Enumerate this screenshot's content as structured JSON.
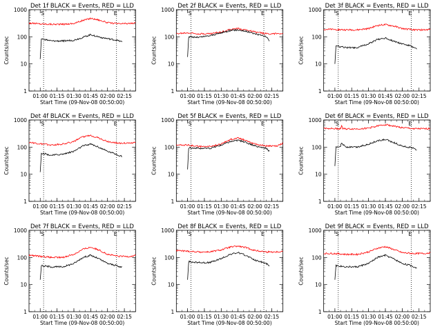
{
  "colors": {
    "events": "#000000",
    "lld": "#ff0000",
    "marker": "#000000",
    "background": "#ffffff"
  },
  "chart_data": [
    {
      "type": "line",
      "title": "Det 1f BLACK = Events, RED = LLD",
      "xlabel": "Start Time (09-Nov-08 00:50:00)",
      "ylabel": "Counts/sec",
      "yscale": "log",
      "ylim": [
        1,
        1000
      ],
      "xlim": [
        "00:50",
        "02:25"
      ],
      "x_ticks": [
        "01:00",
        "01:15",
        "01:30",
        "01:45",
        "02:00",
        "02:15"
      ],
      "y_ticks": [
        "1",
        "10",
        "100",
        "1000"
      ],
      "marker_times": [
        "01:03",
        "02:08"
      ],
      "marker_labels": [
        "S",
        "E"
      ],
      "grid": false,
      "series": [
        {
          "name": "Events",
          "color": "black",
          "time": [
            "01:00",
            "01:01",
            "01:10",
            "01:20",
            "01:30",
            "01:38",
            "01:45",
            "01:52",
            "02:00",
            "02:08",
            "02:10",
            "02:13"
          ],
          "values": [
            15,
            85,
            70,
            70,
            75,
            95,
            120,
            100,
            85,
            75,
            70,
            65
          ]
        },
        {
          "name": "LLD",
          "color": "red",
          "time": [
            "00:50",
            "01:00",
            "01:10",
            "01:20",
            "01:30",
            "01:38",
            "01:45",
            "01:52",
            "02:00",
            "02:10",
            "02:20",
            "02:25"
          ],
          "values": [
            320,
            300,
            290,
            290,
            310,
            400,
            480,
            420,
            330,
            300,
            310,
            320
          ]
        }
      ]
    },
    {
      "type": "line",
      "title": "Det 2f BLACK = Events, RED = LLD",
      "xlabel": "Start Time (09-Nov-08 00:50:00)",
      "ylabel": "Counts/sec",
      "yscale": "log",
      "ylim": [
        1,
        1000
      ],
      "xlim": [
        "00:50",
        "02:25"
      ],
      "x_ticks": [
        "01:00",
        "01:15",
        "01:30",
        "01:45",
        "02:00",
        "02:15"
      ],
      "y_ticks": [
        "1",
        "10",
        "100",
        "1000"
      ],
      "marker_times": [
        "01:03",
        "02:08"
      ],
      "marker_labels": [
        "S",
        "E"
      ],
      "grid": false,
      "series": [
        {
          "name": "Events",
          "color": "black",
          "time": [
            "01:00",
            "01:01",
            "01:10",
            "01:20",
            "01:30",
            "01:38",
            "01:45",
            "01:52",
            "02:00",
            "02:08",
            "02:10",
            "02:13"
          ],
          "values": [
            18,
            100,
            95,
            110,
            140,
            170,
            180,
            160,
            130,
            110,
            100,
            70
          ]
        },
        {
          "name": "LLD",
          "color": "red",
          "time": [
            "00:50",
            "01:00",
            "01:10",
            "01:20",
            "01:30",
            "01:38",
            "01:45",
            "01:52",
            "02:00",
            "02:10",
            "02:20",
            "02:25"
          ],
          "values": [
            130,
            140,
            130,
            130,
            150,
            185,
            200,
            180,
            150,
            130,
            130,
            135
          ]
        }
      ]
    },
    {
      "type": "line",
      "title": "Det 3f BLACK = Events, RED = LLD",
      "xlabel": "Start Time (09-Nov-08 00:50:00)",
      "ylabel": "Counts/sec",
      "yscale": "log",
      "ylim": [
        1,
        1000
      ],
      "xlim": [
        "00:50",
        "02:25"
      ],
      "x_ticks": [
        "01:00",
        "01:15",
        "01:30",
        "01:45",
        "02:00",
        "02:15"
      ],
      "y_ticks": [
        "1",
        "10",
        "100",
        "1000"
      ],
      "marker_times": [
        "01:03",
        "02:08"
      ],
      "marker_labels": [
        "S",
        "E"
      ],
      "grid": false,
      "series": [
        {
          "name": "Events",
          "color": "black",
          "time": [
            "01:00",
            "01:01",
            "01:10",
            "01:20",
            "01:30",
            "01:38",
            "01:45",
            "01:52",
            "02:00",
            "02:08",
            "02:10",
            "02:13"
          ],
          "values": [
            10,
            45,
            40,
            40,
            55,
            80,
            90,
            70,
            55,
            45,
            40,
            35
          ]
        },
        {
          "name": "LLD",
          "color": "red",
          "time": [
            "00:50",
            "01:00",
            "01:10",
            "01:20",
            "01:30",
            "01:38",
            "01:45",
            "01:52",
            "02:00",
            "02:10",
            "02:20",
            "02:25"
          ],
          "values": [
            190,
            185,
            180,
            180,
            200,
            260,
            280,
            250,
            200,
            180,
            180,
            185
          ]
        }
      ]
    },
    {
      "type": "line",
      "title": "Det 4f BLACK = Events, RED = LLD",
      "xlabel": "Start Time (09-Nov-08 00:50:00)",
      "ylabel": "Counts/sec",
      "yscale": "log",
      "ylim": [
        1,
        1000
      ],
      "xlim": [
        "00:50",
        "02:25"
      ],
      "x_ticks": [
        "01:00",
        "01:15",
        "01:30",
        "01:45",
        "02:00",
        "02:15"
      ],
      "y_ticks": [
        "1",
        "10",
        "100",
        "1000"
      ],
      "marker_times": [
        "01:03",
        "02:08"
      ],
      "marker_labels": [
        "S",
        "E"
      ],
      "grid": false,
      "series": [
        {
          "name": "Events",
          "color": "black",
          "time": [
            "01:00",
            "01:01",
            "01:10",
            "01:20",
            "01:30",
            "01:38",
            "01:45",
            "01:52",
            "02:00",
            "02:08",
            "02:10",
            "02:13"
          ],
          "values": [
            12,
            60,
            50,
            55,
            70,
            110,
            130,
            100,
            70,
            55,
            50,
            45
          ]
        },
        {
          "name": "LLD",
          "color": "red",
          "time": [
            "00:50",
            "01:00",
            "01:10",
            "01:20",
            "01:30",
            "01:38",
            "01:45",
            "01:52",
            "02:00",
            "02:10",
            "02:20",
            "02:25"
          ],
          "values": [
            150,
            130,
            120,
            130,
            160,
            240,
            270,
            220,
            160,
            140,
            140,
            150
          ]
        }
      ]
    },
    {
      "type": "line",
      "title": "Det 5f BLACK = Events, RED = LLD",
      "xlabel": "Start Time (09-Nov-08 00:50:00)",
      "ylabel": "Counts/sec",
      "yscale": "log",
      "ylim": [
        1,
        1000
      ],
      "xlim": [
        "00:50",
        "02:25"
      ],
      "x_ticks": [
        "01:00",
        "01:15",
        "01:30",
        "01:45",
        "02:00",
        "02:15"
      ],
      "y_ticks": [
        "1",
        "10",
        "100",
        "1000"
      ],
      "marker_times": [
        "01:03",
        "02:08"
      ],
      "marker_labels": [
        "S",
        "E"
      ],
      "grid": false,
      "series": [
        {
          "name": "Events",
          "color": "black",
          "time": [
            "01:00",
            "01:01",
            "01:10",
            "01:20",
            "01:30",
            "01:38",
            "01:45",
            "01:52",
            "02:00",
            "02:08",
            "02:10",
            "02:13"
          ],
          "values": [
            15,
            95,
            90,
            90,
            120,
            160,
            180,
            150,
            110,
            95,
            90,
            70
          ]
        },
        {
          "name": "LLD",
          "color": "red",
          "time": [
            "00:50",
            "01:00",
            "01:10",
            "01:20",
            "01:30",
            "01:38",
            "01:45",
            "01:52",
            "02:00",
            "02:10",
            "02:20",
            "02:25"
          ],
          "values": [
            120,
            120,
            105,
            105,
            130,
            190,
            220,
            180,
            130,
            110,
            110,
            140
          ]
        }
      ]
    },
    {
      "type": "line",
      "title": "Det 6f BLACK = Events, RED = LLD",
      "xlabel": "Start Time (09-Nov-08 00:50:00)",
      "ylabel": "Counts/sec",
      "yscale": "log",
      "ylim": [
        1,
        1000
      ],
      "xlim": [
        "00:50",
        "02:25"
      ],
      "x_ticks": [
        "01:00",
        "01:15",
        "01:30",
        "01:45",
        "02:00",
        "02:15"
      ],
      "y_ticks": [
        "1",
        "10",
        "100",
        "1000"
      ],
      "marker_times": [
        "01:03",
        "02:08"
      ],
      "marker_labels": [
        "S",
        "E"
      ],
      "grid": false,
      "series": [
        {
          "name": "Events",
          "color": "black",
          "time": [
            "01:00",
            "01:01",
            "01:05",
            "01:06",
            "01:10",
            "01:20",
            "01:30",
            "01:38",
            "01:45",
            "01:52",
            "02:00",
            "02:08",
            "02:10",
            "02:13"
          ],
          "values": [
            20,
            100,
            110,
            140,
            100,
            100,
            130,
            170,
            190,
            150,
            110,
            95,
            90,
            80
          ]
        },
        {
          "name": "LLD",
          "color": "red",
          "time": [
            "00:50",
            "01:00",
            "01:05",
            "01:06",
            "01:07",
            "01:20",
            "01:30",
            "01:38",
            "01:45",
            "01:52",
            "02:00",
            "02:10",
            "02:20",
            "02:25"
          ],
          "values": [
            500,
            480,
            480,
            620,
            470,
            470,
            500,
            600,
            680,
            600,
            520,
            480,
            470,
            480
          ]
        }
      ]
    },
    {
      "type": "line",
      "title": "Det 7f BLACK = Events, RED = LLD",
      "xlabel": "Start Time (09-Nov-08 00:50:00)",
      "ylabel": "Counts/sec",
      "yscale": "log",
      "ylim": [
        1,
        1000
      ],
      "xlim": [
        "00:50",
        "02:25"
      ],
      "x_ticks": [
        "01:00",
        "01:15",
        "01:30",
        "01:45",
        "02:00",
        "02:15"
      ],
      "y_ticks": [
        "1",
        "10",
        "100",
        "1000"
      ],
      "marker_times": [
        "01:03",
        "02:08"
      ],
      "marker_labels": [
        "S",
        "E"
      ],
      "grid": false,
      "series": [
        {
          "name": "Events",
          "color": "black",
          "time": [
            "01:00",
            "01:01",
            "01:10",
            "01:20",
            "01:30",
            "01:38",
            "01:45",
            "01:52",
            "02:00",
            "02:08",
            "02:10",
            "02:13"
          ],
          "values": [
            15,
            50,
            45,
            45,
            60,
            100,
            120,
            90,
            60,
            50,
            45,
            45
          ]
        },
        {
          "name": "LLD",
          "color": "red",
          "time": [
            "00:50",
            "01:00",
            "01:10",
            "01:20",
            "01:30",
            "01:38",
            "01:45",
            "01:52",
            "02:00",
            "02:10",
            "02:20",
            "02:25"
          ],
          "values": [
            120,
            110,
            100,
            100,
            130,
            200,
            240,
            190,
            130,
            110,
            110,
            120
          ]
        }
      ]
    },
    {
      "type": "line",
      "title": "Det 8f BLACK = Events, RED = LLD",
      "xlabel": "Start Time (09-Nov-08 00:50:00)",
      "ylabel": "Counts/sec",
      "yscale": "log",
      "ylim": [
        1,
        1000
      ],
      "xlim": [
        "00:50",
        "02:25"
      ],
      "x_ticks": [
        "01:00",
        "01:15",
        "01:30",
        "01:45",
        "02:00",
        "02:15"
      ],
      "y_ticks": [
        "1",
        "10",
        "100",
        "1000"
      ],
      "marker_times": [
        "01:03",
        "02:08"
      ],
      "marker_labels": [
        "S",
        "E"
      ],
      "grid": false,
      "series": [
        {
          "name": "Events",
          "color": "black",
          "time": [
            "01:00",
            "01:01",
            "01:10",
            "01:20",
            "01:30",
            "01:38",
            "01:45",
            "01:52",
            "02:00",
            "02:08",
            "02:10",
            "02:13"
          ],
          "values": [
            15,
            70,
            65,
            65,
            90,
            130,
            150,
            120,
            80,
            65,
            60,
            50
          ]
        },
        {
          "name": "LLD",
          "color": "red",
          "time": [
            "00:50",
            "01:00",
            "01:10",
            "01:20",
            "01:30",
            "01:38",
            "01:45",
            "01:52",
            "02:00",
            "02:10",
            "02:20",
            "02:25"
          ],
          "values": [
            180,
            170,
            160,
            160,
            190,
            240,
            260,
            230,
            180,
            160,
            160,
            170
          ]
        }
      ]
    },
    {
      "type": "line",
      "title": "Det 9f BLACK = Events, RED = LLD",
      "xlabel": "Start Time (09-Nov-08 00:50:00)",
      "ylabel": "Counts/sec",
      "yscale": "log",
      "ylim": [
        1,
        1000
      ],
      "xlim": [
        "00:50",
        "02:25"
      ],
      "x_ticks": [
        "01:00",
        "01:15",
        "01:30",
        "01:45",
        "02:00",
        "02:15"
      ],
      "y_ticks": [
        "1",
        "10",
        "100",
        "1000"
      ],
      "marker_times": [
        "01:03",
        "02:08"
      ],
      "marker_labels": [
        "S",
        "E"
      ],
      "grid": false,
      "series": [
        {
          "name": "Events",
          "color": "black",
          "time": [
            "01:00",
            "01:01",
            "01:10",
            "01:20",
            "01:30",
            "01:38",
            "01:45",
            "01:52",
            "02:00",
            "02:08",
            "02:10",
            "02:13"
          ],
          "values": [
            15,
            50,
            45,
            45,
            60,
            100,
            120,
            90,
            60,
            50,
            45,
            40
          ]
        },
        {
          "name": "LLD",
          "color": "red",
          "time": [
            "00:50",
            "01:00",
            "01:10",
            "01:20",
            "01:30",
            "01:38",
            "01:45",
            "01:52",
            "02:00",
            "02:10",
            "02:20",
            "02:25"
          ],
          "values": [
            140,
            140,
            130,
            130,
            160,
            220,
            250,
            200,
            150,
            140,
            140,
            150
          ]
        }
      ]
    }
  ]
}
